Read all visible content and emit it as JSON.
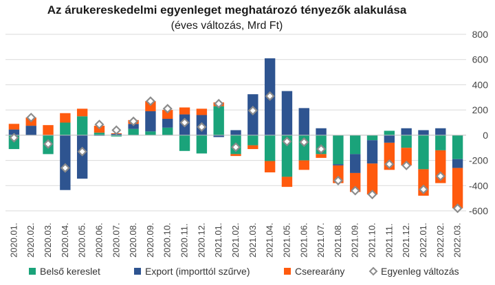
{
  "chart_data": {
    "type": "bar",
    "title": "Az árukereskedelmi egyenleget meghatározó tényezők alakulása",
    "subtitle": "(éves változás, Mrd Ft)",
    "ylim": [
      -600,
      800
    ],
    "yticks": [
      800,
      600,
      400,
      200,
      0,
      -200,
      -400,
      -600
    ],
    "ytick_labels": [
      "800",
      "600",
      "400",
      "200",
      "0",
      "-200",
      "-400",
      "-600"
    ],
    "grid": true,
    "legend_position": "bottom",
    "categories": [
      "2020.01.",
      "2020.02.",
      "2020.03.",
      "2020.04.",
      "2020.05.",
      "2020.06.",
      "2020.07.",
      "2020.08.",
      "2020.09.",
      "2020.10.",
      "2020.11.",
      "2020.12.",
      "2021.01.",
      "2021.02.",
      "2021.03.",
      "2021.04.",
      "2021.05.",
      "2021.06.",
      "2021.07.",
      "2021.08.",
      "2021.09.",
      "2021.10.",
      "2021.11.",
      "2021.12.",
      "2022.01.",
      "2022.02.",
      "2022.03."
    ],
    "series": [
      {
        "name": "Belső kereslet",
        "color": "#1aa37a",
        "values": [
          -110,
          0,
          -150,
          100,
          150,
          20,
          -10,
          50,
          30,
          60,
          -125,
          -145,
          230,
          -150,
          -80,
          -205,
          -330,
          -200,
          -150,
          -230,
          -150,
          -40,
          35,
          -100,
          -270,
          -120,
          -190
        ]
      },
      {
        "name": "Export (importtól szűrve)",
        "color": "#2e5490",
        "values": [
          45,
          75,
          0,
          -435,
          -345,
          -5,
          10,
          40,
          160,
          70,
          165,
          160,
          -15,
          40,
          325,
          610,
          350,
          215,
          55,
          -10,
          -150,
          -185,
          -60,
          55,
          40,
          55,
          -70
        ]
      },
      {
        "name": "Cserearány",
        "color": "#ff5a0e",
        "values": [
          45,
          65,
          80,
          75,
          60,
          55,
          5,
          30,
          80,
          70,
          55,
          50,
          30,
          -15,
          -30,
          -90,
          -80,
          -75,
          -30,
          -140,
          -150,
          -245,
          -215,
          -140,
          -210,
          -260,
          -320
        ]
      }
    ],
    "balance": {
      "name": "Egyenleg változás",
      "values": [
        -20,
        140,
        -70,
        -260,
        -130,
        85,
        40,
        110,
        270,
        210,
        100,
        65,
        250,
        -95,
        195,
        310,
        -50,
        -55,
        -110,
        -360,
        -440,
        -470,
        -230,
        -240,
        -430,
        -325,
        -580
      ]
    }
  }
}
